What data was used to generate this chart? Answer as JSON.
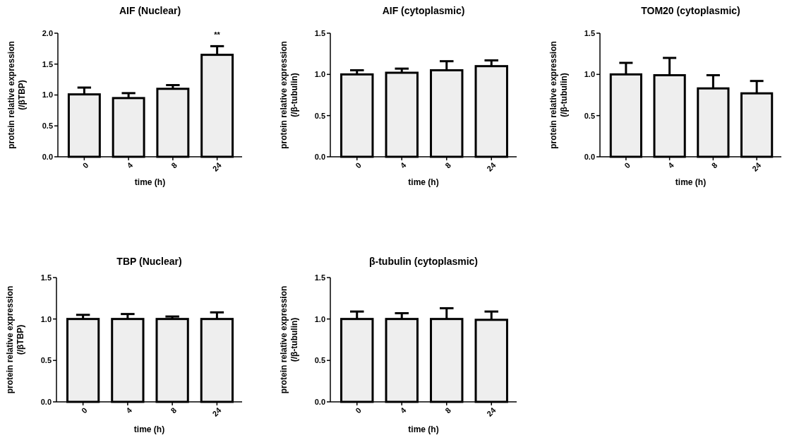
{
  "chart_data": [
    {
      "type": "bar",
      "title": "AIF (Nuclear)",
      "xlabel": "time (h)",
      "ylabel": "protein relative expression\n(/βTBP)",
      "categories": [
        "0",
        "4",
        "8",
        "24"
      ],
      "values": [
        1.01,
        0.95,
        1.1,
        1.65
      ],
      "errors": [
        [
          1.01,
          1.12
        ],
        [
          0.95,
          1.03
        ],
        [
          1.1,
          1.16
        ],
        [
          1.65,
          1.79
        ]
      ],
      "color": "#eeeeee",
      "ylim": [
        0,
        2
      ],
      "yticks": [
        {
          "value": 0,
          "label": "0.0"
        },
        {
          "value": 0.5,
          "label": "0.5"
        },
        {
          "value": 1,
          "label": "1.0"
        },
        {
          "value": 1.5,
          "label": "1.5"
        },
        {
          "value": 2,
          "label": "2.0"
        }
      ],
      "annotations": [
        "**"
      ]
    },
    {
      "type": "bar",
      "title": "AIF (cytoplasmic)",
      "xlabel": "time (h)",
      "ylabel": "protein relative expression\n(/β-tubulin)",
      "categories": [
        "0",
        "4",
        "8",
        "24"
      ],
      "values": [
        1.0,
        1.02,
        1.05,
        1.1
      ],
      "errors": [
        [
          1.0,
          1.05
        ],
        [
          1.02,
          1.07
        ],
        [
          1.05,
          1.16
        ],
        [
          1.1,
          1.17
        ]
      ],
      "color": "#eeeeee",
      "ylim": [
        0,
        1.5
      ],
      "yticks": [
        {
          "value": 0,
          "label": "0.0"
        },
        {
          "value": 0.5,
          "label": "0.5"
        },
        {
          "value": 1,
          "label": "1.0"
        },
        {
          "value": 1.5,
          "label": "1.5"
        }
      ]
    },
    {
      "type": "bar",
      "title": "TOM20 (cytoplasmic)",
      "xlabel": "time (h)",
      "ylabel": "protein relative expression\n(/β-tubulin)",
      "categories": [
        "0",
        "4",
        "8",
        "24"
      ],
      "values": [
        1.0,
        0.99,
        0.83,
        0.77
      ],
      "errors": [
        [
          1.0,
          1.14
        ],
        [
          0.99,
          1.2
        ],
        [
          0.83,
          0.99
        ],
        [
          0.77,
          0.92
        ]
      ],
      "color": "#eeeeee",
      "ylim": [
        0,
        1.5
      ],
      "yticks": [
        {
          "value": 0,
          "label": "0.0"
        },
        {
          "value": 0.5,
          "label": "0.5"
        },
        {
          "value": 1,
          "label": "1.0"
        },
        {
          "value": 1.5,
          "label": "1.5"
        }
      ]
    },
    {
      "type": "bar",
      "title": "TBP (Nuclear)",
      "xlabel": "time (h)",
      "ylabel": "protein relative expression\n(/βTBP)",
      "categories": [
        "0",
        "4",
        "8",
        "24"
      ],
      "values": [
        1.0,
        1.0,
        1.0,
        1.0
      ],
      "errors": [
        [
          1.0,
          1.05
        ],
        [
          1.0,
          1.06
        ],
        [
          1.0,
          1.03
        ],
        [
          1.0,
          1.08
        ]
      ],
      "color": "#eeeeee",
      "ylim": [
        0,
        1.5
      ],
      "yticks": [
        {
          "value": 0,
          "label": "0.0"
        },
        {
          "value": 0.5,
          "label": "0.5"
        },
        {
          "value": 1,
          "label": "1.0"
        },
        {
          "value": 1.5,
          "label": "1.5"
        }
      ]
    },
    {
      "type": "bar",
      "title": "β-tubulin (cytoplasmic)",
      "xlabel": "time (h)",
      "ylabel": "protein relative expression\n(/β-tubulin)",
      "categories": [
        "0",
        "4",
        "8",
        "24"
      ],
      "values": [
        1.0,
        1.0,
        1.0,
        0.99
      ],
      "errors": [
        [
          1.0,
          1.09
        ],
        [
          1.0,
          1.07
        ],
        [
          1.0,
          1.13
        ],
        [
          0.99,
          1.09
        ]
      ],
      "color": "#eeeeee",
      "ylim": [
        0,
        1.5
      ],
      "yticks": [
        {
          "value": 0,
          "label": "0.0"
        },
        {
          "value": 0.5,
          "label": "0.5"
        },
        {
          "value": 1,
          "label": "1.0"
        },
        {
          "value": 1.5,
          "label": "1.5"
        }
      ]
    }
  ]
}
